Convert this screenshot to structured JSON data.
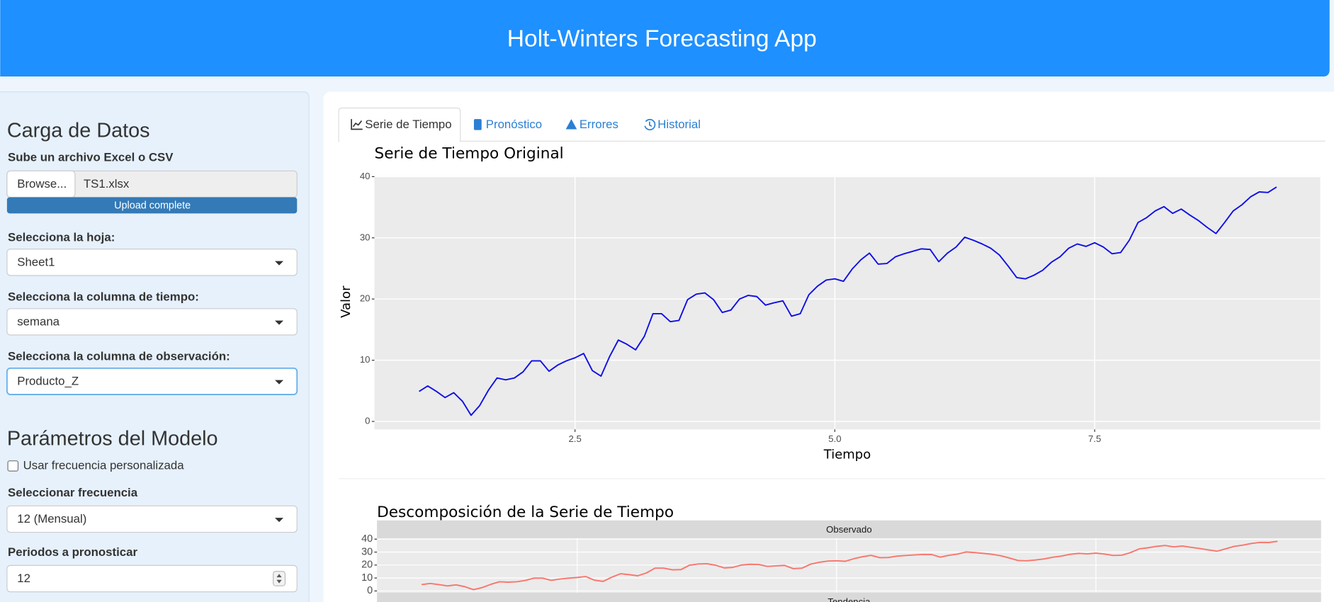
{
  "header": {
    "title": "Holt-Winters Forecasting App"
  },
  "sidebar": {
    "data_section": {
      "heading": "Carga de Datos",
      "file_label": "Sube un archivo Excel o CSV",
      "browse_button": "Browse...",
      "file_name": "TS1.xlsx",
      "upload_status": "Upload complete",
      "sheet_label": "Selecciona la hoja:",
      "sheet_value": "Sheet1",
      "time_label": "Selecciona la columna de tiempo:",
      "time_value": "semana",
      "obs_label": "Selecciona la columna de observación:",
      "obs_value": "Producto_Z"
    },
    "model_section": {
      "heading": "Parámetros del Modelo",
      "custom_freq_label": "Usar frecuencia personalizada",
      "custom_freq_checked": false,
      "freq_label": "Seleccionar frecuencia",
      "freq_value": "12 (Mensual)",
      "periods_label": "Periodos a pronosticar",
      "periods_value": 12
    }
  },
  "tabs": {
    "labels": [
      "Serie de Tiempo",
      "Pronóstico",
      "Errores",
      "Historial"
    ],
    "active": 0
  },
  "time_series_chart": {
    "type": "line",
    "title": "Serie de Tiempo Original",
    "x_label": "Tiempo",
    "y_label": "Valor",
    "color": "#1010e6",
    "x": [
      1,
      1.083,
      1.167,
      1.25,
      1.333,
      1.417,
      1.5,
      1.583,
      1.667,
      1.75,
      1.833,
      1.917,
      2,
      2.083,
      2.167,
      2.25,
      2.333,
      2.417,
      2.5,
      2.583,
      2.667,
      2.75,
      2.833,
      2.917,
      3,
      3.083,
      3.167,
      3.25,
      3.333,
      3.417,
      3.5,
      3.583,
      3.667,
      3.75,
      3.833,
      3.917,
      4,
      4.083,
      4.167,
      4.25,
      4.333,
      4.417,
      4.5,
      4.583,
      4.667,
      4.75,
      4.833,
      4.917,
      5,
      5.083,
      5.167,
      5.25,
      5.333,
      5.417,
      5.5,
      5.583,
      5.667,
      5.75,
      5.833,
      5.917,
      6,
      6.083,
      6.167,
      6.25,
      6.333,
      6.417,
      6.5,
      6.583,
      6.667,
      6.75,
      6.833,
      6.917,
      7,
      7.083,
      7.167,
      7.25,
      7.333,
      7.417,
      7.5,
      7.583,
      7.667,
      7.75,
      7.833,
      7.917,
      8,
      8.083,
      8.167,
      8.25,
      8.333,
      8.417,
      8.5,
      8.583,
      8.667,
      8.75,
      8.833,
      8.917,
      9,
      9.083,
      9.167,
      9.25
    ],
    "values": [
      4.9,
      5.8,
      4.9,
      3.9,
      4.7,
      3.3,
      1.0,
      2.6,
      5.1,
      7.1,
      6.8,
      7.1,
      8.1,
      9.9,
      9.9,
      8.2,
      9.2,
      9.9,
      10.4,
      11.1,
      8.3,
      7.4,
      10.6,
      13.3,
      12.6,
      11.7,
      13.9,
      17.6,
      17.6,
      16.3,
      16.5,
      19.9,
      20.8,
      21.0,
      19.9,
      17.8,
      18.2,
      20.0,
      20.6,
      20.4,
      19.0,
      19.4,
      19.7,
      17.2,
      17.6,
      20.7,
      22.1,
      23.1,
      23.3,
      22.9,
      24.9,
      26.4,
      27.5,
      25.7,
      25.8,
      26.9,
      27.4,
      27.8,
      28.2,
      28.1,
      26.1,
      27.5,
      28.5,
      30.1,
      29.6,
      29.0,
      28.3,
      27.2,
      25.4,
      23.5,
      23.3,
      23.9,
      24.7,
      26.0,
      26.9,
      28.3,
      29.0,
      28.6,
      29.2,
      28.5,
      27.4,
      27.6,
      29.6,
      32.5,
      33.3,
      34.4,
      35.1,
      34.0,
      34.7,
      33.7,
      32.8,
      31.7,
      30.7,
      32.5,
      34.4,
      35.4,
      36.7,
      37.5,
      37.4,
      38.3
    ],
    "xlim": [
      0.57,
      9.67
    ],
    "ylim": [
      -1.3,
      40.1
    ],
    "xticks": [
      2.5,
      {
        "value": 5,
        "label": "5.0"
      },
      7.5
    ],
    "yticks": [
      0,
      10,
      20,
      30,
      40
    ],
    "grid": true
  },
  "decomposition_chart": {
    "type": "line",
    "title": "Descomposición de la Serie de Tiempo",
    "panels": [
      {
        "label": "Observado",
        "color": "#f8766d",
        "ylim": [
          -1.3,
          40.7
        ],
        "yticks": [
          0,
          10,
          20,
          30,
          40
        ]
      },
      {
        "label": "Tendencia"
      }
    ],
    "xlim": [
      0.57,
      9.67
    ]
  }
}
